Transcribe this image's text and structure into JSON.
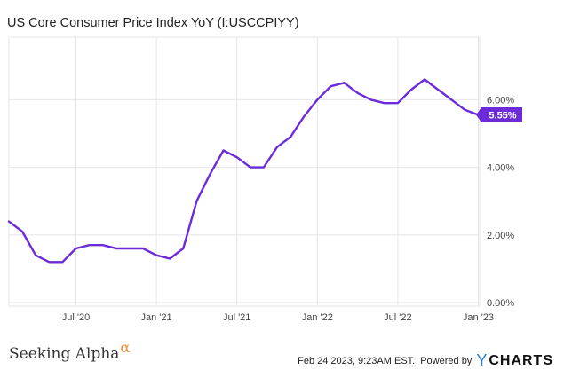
{
  "header": {
    "title": "US Core Consumer Price Index YoY (I:USCCPIYY)"
  },
  "footer": {
    "brand_name": "Seeking Alpha",
    "brand_glyph": "α",
    "timestamp": "Feb 24 2023, 9:23AM EST.",
    "powered_by": "Powered by",
    "provider_glyph": "Y",
    "provider_name": "CHARTS"
  },
  "colors": {
    "line": "#6c2bd9",
    "badge": "#6c2bd9",
    "grid": "#e6e6e6",
    "axis_text": "#444444"
  },
  "chart_data": {
    "type": "line",
    "title": "US Core Consumer Price Index YoY (I:USCCPIYY)",
    "x_ticks": [
      "Jul '20",
      "Jan '21",
      "Jul '21",
      "Jan '22",
      "Jul '22",
      "Jan '23"
    ],
    "y_ticks": [
      "0.00%",
      "2.00%",
      "4.00%",
      "6.00%"
    ],
    "ylim": [
      0.0,
      7.0
    ],
    "last_value_label": "5.55%",
    "grid": true,
    "x": [
      "2020-02",
      "2020-03",
      "2020-04",
      "2020-05",
      "2020-06",
      "2020-07",
      "2020-08",
      "2020-09",
      "2020-10",
      "2020-11",
      "2020-12",
      "2021-01",
      "2021-02",
      "2021-03",
      "2021-04",
      "2021-05",
      "2021-06",
      "2021-07",
      "2021-08",
      "2021-09",
      "2021-10",
      "2021-11",
      "2021-12",
      "2022-01",
      "2022-02",
      "2022-03",
      "2022-04",
      "2022-05",
      "2022-06",
      "2022-07",
      "2022-08",
      "2022-09",
      "2022-10",
      "2022-11",
      "2022-12",
      "2023-01"
    ],
    "values": [
      2.4,
      2.1,
      1.4,
      1.2,
      1.2,
      1.6,
      1.7,
      1.7,
      1.6,
      1.6,
      1.6,
      1.4,
      1.3,
      1.6,
      3.0,
      3.8,
      4.5,
      4.3,
      4.0,
      4.0,
      4.6,
      4.9,
      5.5,
      6.0,
      6.4,
      6.5,
      6.2,
      6.0,
      5.9,
      5.9,
      6.3,
      6.6,
      6.3,
      6.0,
      5.7,
      5.55
    ]
  }
}
